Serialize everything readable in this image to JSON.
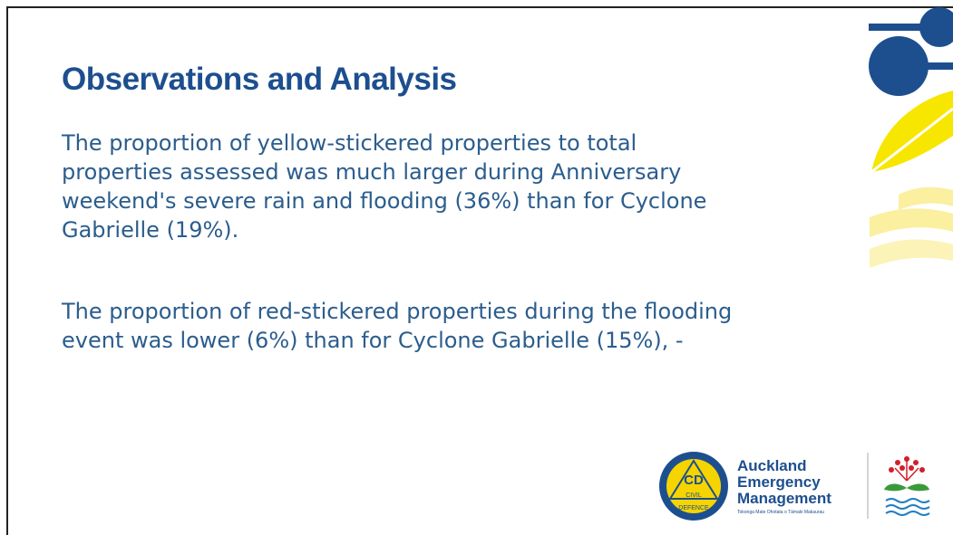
{
  "slide": {
    "title": "Observations and Analysis",
    "paragraphs": [
      {
        "lines": [
          "The proportion of yellow-stickered properties to total",
          "properties assessed was much larger during Anniversary",
          "weekend's severe rain and flooding (36%) than for Cyclone",
          "Gabrielle (19%)."
        ]
      },
      {
        "lines": [
          "The proportion of red-stickered properties during the flooding",
          "event was lower (6%) than for Cyclone Gabrielle (15%), -"
        ]
      }
    ],
    "logo": {
      "badge": "CD",
      "badge_top": "CIVIL",
      "badge_bottom": "DEFENCE",
      "name_lines": [
        "Auckland",
        "Emergency",
        "Management"
      ],
      "tagline": "Tokonga Mate Ohotata o Tāmaki Makaurau"
    }
  }
}
